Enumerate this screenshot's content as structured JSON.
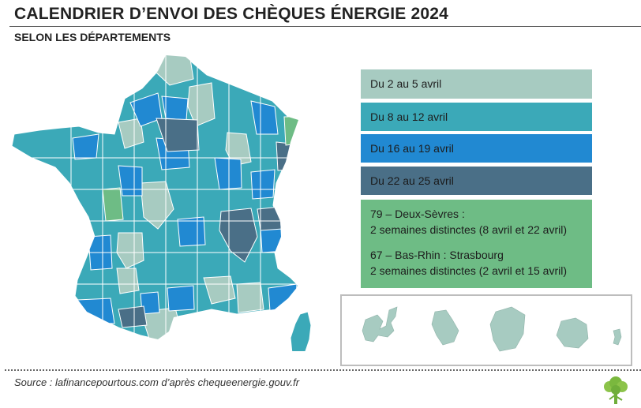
{
  "header": {
    "title": "CALENDRIER D’ENVOI DES CHÈQUES ÉNERGIE 2024",
    "subtitle": "SELON LES DÉPARTEMENTS"
  },
  "legend": [
    {
      "label": "Du 2 au 5 avril",
      "color": "#a7cbc1"
    },
    {
      "label": "Du 8 au 12 avril",
      "color": "#3ba9b8"
    },
    {
      "label": "Du 16 au 19 avril",
      "color": "#2189d2"
    },
    {
      "label": "Du 22 au 25 avril",
      "color": "#4a6f87"
    }
  ],
  "special_note": {
    "color": "#6ebc85",
    "deux_sevres_line1": "79 – Deux-Sèvres :",
    "deux_sevres_line2": "2 semaines distinctes (8 avril et 22 avril)",
    "bas_rhin_line1": "67 – Bas-Rhin : Strasbourg",
    "bas_rhin_line2": "2 semaines distinctes (2 avril et 15 avril)"
  },
  "footer": {
    "source": "Source : lafinancepourtous.com d’après chequeenergie.gouv.fr"
  },
  "map": {
    "region_colors": {
      "period_1": "#a7cbc1",
      "period_2": "#3ba9b8",
      "period_3": "#2189d2",
      "period_4": "#4a6f87",
      "special": "#6ebc85"
    },
    "overseas_color": "#a7cbc1"
  },
  "icons": {
    "logo": "tree-logo-icon"
  }
}
